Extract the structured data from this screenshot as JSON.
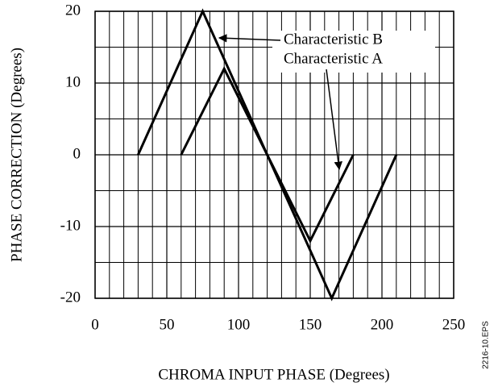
{
  "chart_data": {
    "type": "line",
    "xlabel": "CHROMA INPUT PHASE  (Degrees)",
    "ylabel": "PHASE  CORRECTION  (Degrees)",
    "series": [
      {
        "name": "Characteristic B",
        "color": "#000000",
        "x": [
          30,
          75,
          165,
          210
        ],
        "values": [
          0,
          20,
          -20,
          0
        ]
      },
      {
        "name": "Characteristic A",
        "color": "#000000",
        "x": [
          60,
          90,
          150,
          180
        ],
        "values": [
          0,
          12,
          -12,
          0
        ]
      }
    ],
    "xlim": [
      0,
      250
    ],
    "xticks": [
      0,
      50,
      100,
      150,
      200,
      250
    ],
    "ylim": [
      -20,
      20
    ],
    "yticks": [
      -20,
      -10,
      0,
      10,
      20
    ],
    "grid": true,
    "minor_grid": {
      "x": 10,
      "y": 5
    },
    "figure_id": "2216-10.EPS"
  }
}
